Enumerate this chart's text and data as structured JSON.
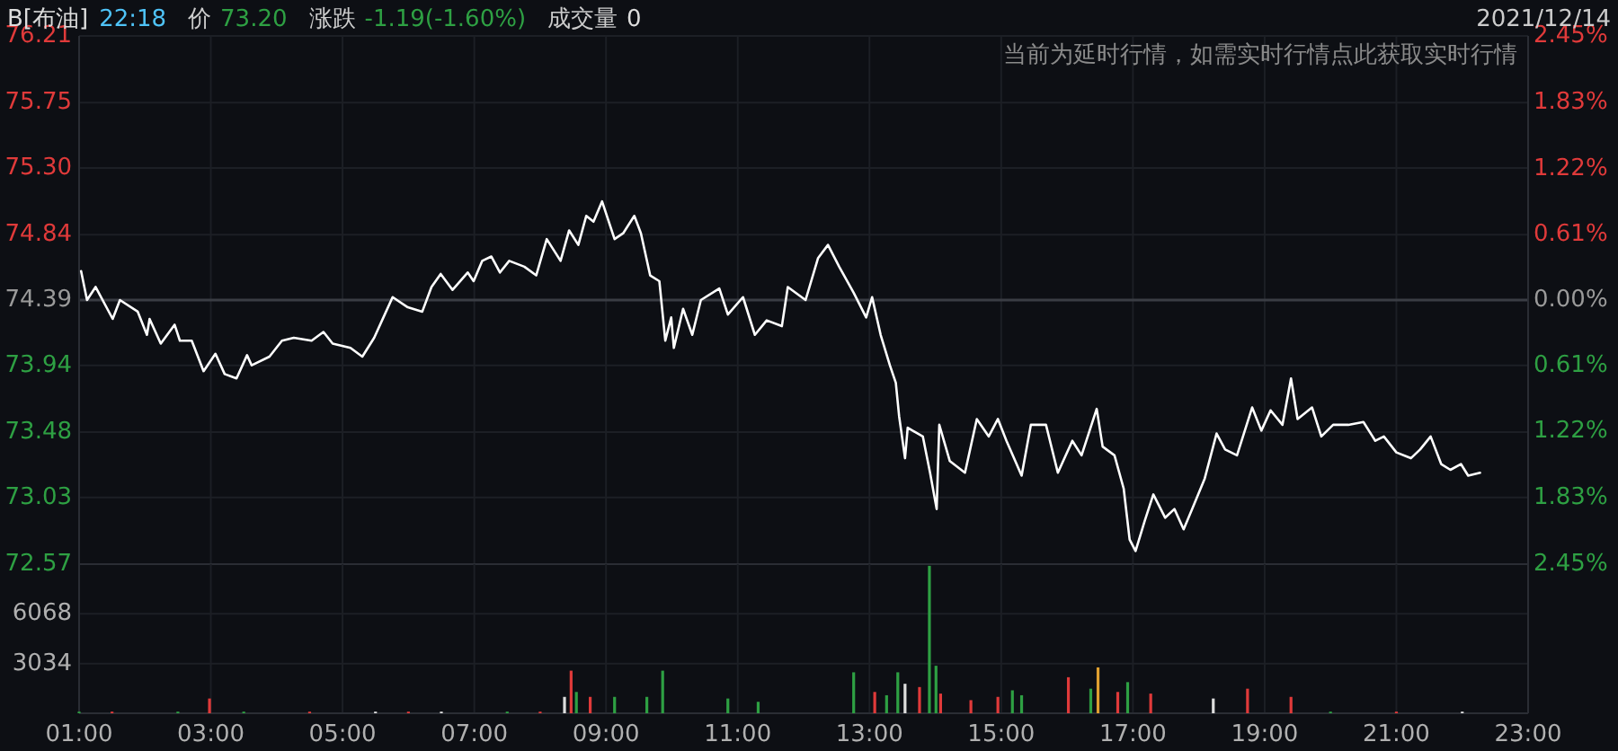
{
  "chart_data": [
    {
      "type": "line",
      "title": "B[布油]",
      "annotations": [
        "22:18",
        "价",
        "73.20",
        "涨跌",
        "-1.19(-1.60%)",
        "成交量",
        "0",
        "2021/12/14",
        "当前为延时行情，如需实时行情点此获取实时行情"
      ],
      "series": [
        {
          "color": "#ffffff",
          "x": [
            1.03,
            1.12,
            1.25,
            1.51,
            1.62,
            1.89,
            2.03,
            2.07,
            2.24,
            2.45,
            2.53,
            2.71,
            2.89,
            3.07,
            3.21,
            3.39,
            3.55,
            3.62,
            3.89,
            4.08,
            4.26,
            4.53,
            4.71,
            4.85,
            5.12,
            5.3,
            5.48,
            5.62,
            5.76,
            5.99,
            6.21,
            6.35,
            6.49,
            6.67,
            6.9,
            6.99,
            7.12,
            7.26,
            7.39,
            7.53,
            7.76,
            7.94,
            8.1,
            8.31,
            8.44,
            8.58,
            8.7,
            8.81,
            8.94,
            9.13,
            9.26,
            9.43,
            9.53,
            9.67,
            9.81,
            9.9,
            9.99,
            10.03,
            10.17,
            10.31,
            10.44,
            10.72,
            10.85,
            11.08,
            11.26,
            11.44,
            11.67,
            11.76,
            12.03,
            12.22,
            12.37,
            12.54,
            12.76,
            12.95,
            13.04,
            13.17,
            13.31,
            13.4,
            13.45,
            13.54,
            13.58,
            13.81,
            13.92,
            14.02,
            14.06,
            14.22,
            14.45,
            14.63,
            14.81,
            14.95,
            15.08,
            15.31,
            15.45,
            15.68,
            15.86,
            16.08,
            16.22,
            16.45,
            16.54,
            16.72,
            16.86,
            16.95,
            17.04,
            17.18,
            17.31,
            17.49,
            17.63,
            17.77,
            17.9,
            18.09,
            18.27,
            18.4,
            18.58,
            18.81,
            18.95,
            19.09,
            19.27,
            19.4,
            19.5,
            19.72,
            19.86,
            20.04,
            20.27,
            20.5,
            20.68,
            20.81,
            21.0,
            21.22,
            21.36,
            21.52,
            21.68,
            21.82,
            21.98,
            22.09,
            22.27
          ],
          "values": [
            74.59,
            74.39,
            74.48,
            74.26,
            74.39,
            74.31,
            74.15,
            74.26,
            74.09,
            74.22,
            74.11,
            74.11,
            73.9,
            74.02,
            73.88,
            73.85,
            74.01,
            73.94,
            74.0,
            74.11,
            74.13,
            74.11,
            74.17,
            74.09,
            74.06,
            74.0,
            74.13,
            74.27,
            74.41,
            74.34,
            74.31,
            74.48,
            74.57,
            74.46,
            74.58,
            74.52,
            74.66,
            74.69,
            74.58,
            74.66,
            74.62,
            74.56,
            74.81,
            74.66,
            74.87,
            74.77,
            74.97,
            74.93,
            75.07,
            74.81,
            74.85,
            74.97,
            74.85,
            74.56,
            74.52,
            74.11,
            74.27,
            74.06,
            74.33,
            74.15,
            74.39,
            74.47,
            74.29,
            74.41,
            74.15,
            74.25,
            74.21,
            74.48,
            74.39,
            74.68,
            74.77,
            74.62,
            74.44,
            74.27,
            74.41,
            74.15,
            73.94,
            73.82,
            73.59,
            73.3,
            73.51,
            73.45,
            73.2,
            72.95,
            73.53,
            73.28,
            73.2,
            73.57,
            73.45,
            73.57,
            73.42,
            73.18,
            73.53,
            73.53,
            73.2,
            73.42,
            73.32,
            73.64,
            73.38,
            73.32,
            73.09,
            72.74,
            72.66,
            72.87,
            73.05,
            72.89,
            72.95,
            72.81,
            72.95,
            73.16,
            73.47,
            73.36,
            73.32,
            73.65,
            73.49,
            73.63,
            73.53,
            73.85,
            73.57,
            73.65,
            73.45,
            73.53,
            73.53,
            73.55,
            73.42,
            73.45,
            73.34,
            73.3,
            73.36,
            73.45,
            73.26,
            73.22,
            73.26,
            73.18,
            73.2
          ]
        }
      ],
      "xlim": [
        1,
        23
      ],
      "xticks": [
        1,
        3,
        5,
        7,
        9,
        11,
        13,
        15,
        17,
        19,
        21,
        23
      ],
      "ylim": [
        72.57,
        76.21
      ],
      "yticks": [
        72.57,
        73.03,
        73.48,
        73.94,
        74.39,
        74.84,
        {
          "value": 75.3,
          "label": "75.30"
        },
        75.75,
        76.21
      ],
      "y2lim": [
        -2.45,
        2.45
      ],
      "y2ticks": [
        {
          "value": -2.45,
          "label": "2.45%"
        },
        {
          "value": -1.83,
          "label": "1.83%"
        },
        {
          "value": -1.22,
          "label": "1.22%"
        },
        {
          "value": -0.61,
          "label": "0.61%"
        },
        {
          "value": 0,
          "label": "0.00%"
        },
        {
          "value": 0.61,
          "label": "0.61%"
        },
        {
          "value": 1.22,
          "label": "1.22%"
        },
        {
          "value": 1.83,
          "label": "1.83%"
        },
        {
          "value": 2.45,
          "label": "2.45%"
        }
      ],
      "ref_lines": [
        {
          "axis": "y",
          "value": 74.39,
          "color": "#3a3d44"
        }
      ],
      "tick_labels": "y",
      "grid": true
    },
    {
      "type": "bar",
      "x": [
        1.0,
        1.5,
        2.5,
        2.98,
        3.5,
        4.5,
        5.5,
        6.0,
        6.5,
        7.5,
        8.0,
        8.37,
        8.47,
        8.55,
        8.76,
        9.13,
        9.62,
        9.86,
        10.85,
        11.31,
        12.76,
        13.08,
        13.26,
        13.43,
        13.54,
        13.76,
        13.91,
        14.01,
        14.08,
        14.54,
        14.95,
        15.17,
        15.31,
        16.02,
        16.36,
        16.47,
        16.77,
        16.92,
        17.27,
        18.22,
        18.74,
        19.4,
        20.0,
        21.0,
        22.0
      ],
      "values": [
        100,
        100,
        100,
        900,
        100,
        100,
        100,
        100,
        100,
        100,
        100,
        1000,
        2600,
        1300,
        1000,
        1000,
        1000,
        2600,
        900,
        700,
        2500,
        1300,
        1100,
        2500,
        1800,
        1600,
        9000,
        2900,
        1200,
        800,
        1000,
        1400,
        1100,
        2200,
        1500,
        2800,
        1300,
        1900,
        1200,
        900,
        1500,
        1000,
        100,
        100,
        100
      ],
      "colors": [
        "#2ea043",
        "#e03a3a",
        "#2ea043",
        "#e03a3a",
        "#2ea043",
        "#e03a3a",
        "#dddddd",
        "#e03a3a",
        "#dddddd",
        "#2ea043",
        "#e03a3a",
        "#dddddd",
        "#e03a3a",
        "#2ea043",
        "#e03a3a",
        "#2ea043",
        "#2ea043",
        "#2ea043",
        "#2ea043",
        "#2ea043",
        "#2ea043",
        "#e03a3a",
        "#2ea043",
        "#2ea043",
        "#dddddd",
        "#e03a3a",
        "#2ea043",
        "#2ea043",
        "#e03a3a",
        "#e03a3a",
        "#e03a3a",
        "#2ea043",
        "#2ea043",
        "#e03a3a",
        "#2ea043",
        "#e0a030",
        "#e03a3a",
        "#2ea043",
        "#e03a3a",
        "#dddddd",
        "#e03a3a",
        "#e03a3a",
        "#2ea043",
        "#e03a3a",
        "#dddddd"
      ],
      "xlim": [
        1,
        23
      ],
      "xticks": [
        {
          "value": 1,
          "label": "01:00"
        },
        {
          "value": 3,
          "label": "03:00"
        },
        {
          "value": 5,
          "label": "05:00"
        },
        {
          "value": 7,
          "label": "07:00"
        },
        {
          "value": 9,
          "label": "09:00"
        },
        {
          "value": 11,
          "label": "11:00"
        },
        {
          "value": 13,
          "label": "13:00"
        },
        {
          "value": 15,
          "label": "15:00"
        },
        {
          "value": 17,
          "label": "17:00"
        },
        {
          "value": 19,
          "label": "19:00"
        },
        {
          "value": 21,
          "label": "21:00"
        },
        {
          "value": 23,
          "label": "23:00"
        }
      ],
      "ylim": [
        0,
        9102
      ],
      "yticks": [
        3034,
        6068
      ],
      "grid": true
    }
  ]
}
